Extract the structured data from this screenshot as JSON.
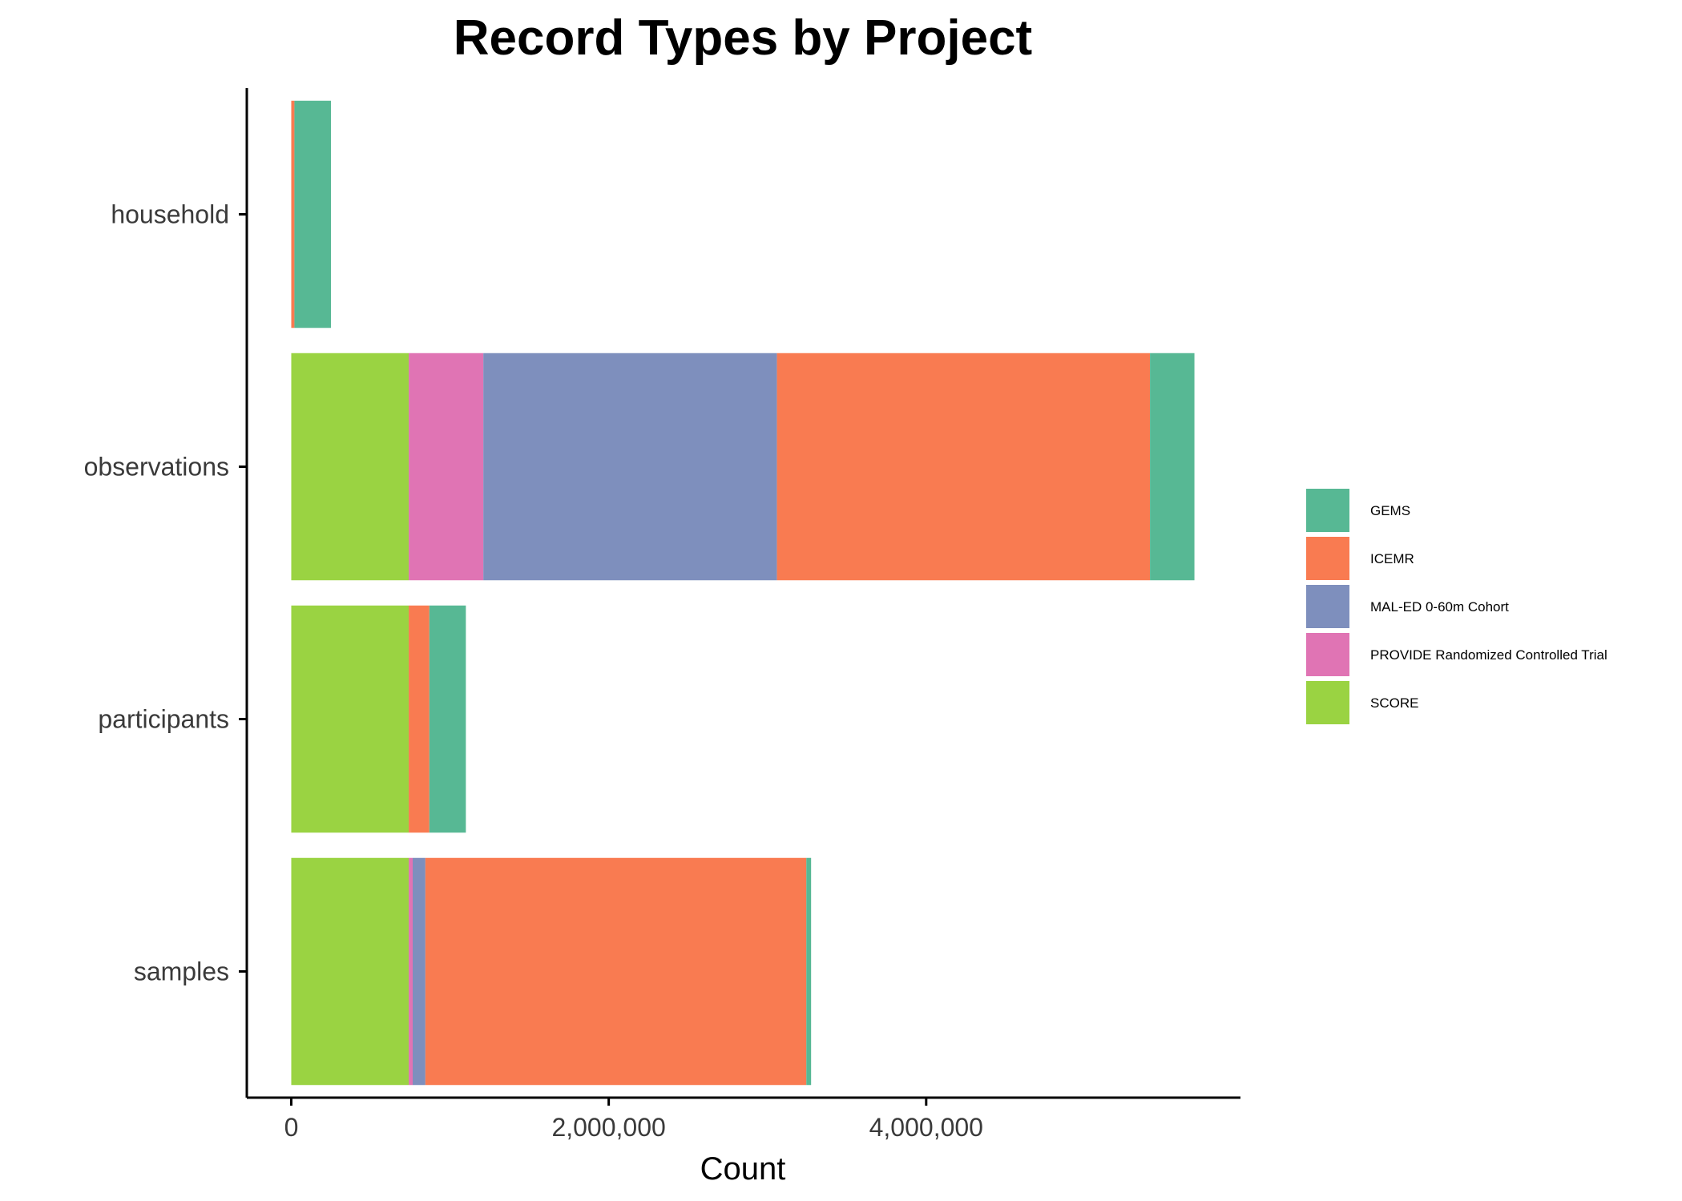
{
  "chart_data": {
    "type": "bar",
    "orientation": "horizontal",
    "stacked": true,
    "title": "Record Types by Project",
    "xlabel": "Count",
    "ylabel": "",
    "categories": [
      "samples",
      "participants",
      "observations",
      "household"
    ],
    "xticks": [
      {
        "value": 0,
        "label": "0"
      },
      {
        "value": 2000000,
        "label": "2,000,000"
      },
      {
        "value": 4000000,
        "label": "4,000,000"
      }
    ],
    "xlim": [
      -280000,
      5980000
    ],
    "grid": false,
    "legend_position": "right",
    "stack_order": [
      "SCORE",
      "PROVIDE Randomized Controlled Trial",
      "MAL-ED 0-60m Cohort",
      "ICEMR",
      "GEMS"
    ],
    "series": [
      {
        "name": "GEMS",
        "color": "#57b894",
        "values": [
          30000,
          230000,
          280000,
          230000
        ]
      },
      {
        "name": "ICEMR",
        "color": "#f97b51",
        "values": [
          2400000,
          130000,
          2350000,
          20000
        ]
      },
      {
        "name": "MAL-ED 0-60m Cohort",
        "color": "#7e8fbd",
        "values": [
          80000,
          0,
          1850000,
          0
        ]
      },
      {
        "name": "PROVIDE Randomized Controlled Trial",
        "color": "#e074b4",
        "values": [
          25000,
          0,
          470000,
          0
        ]
      },
      {
        "name": "SCORE",
        "color": "#9ad342",
        "values": [
          740000,
          740000,
          740000,
          0
        ]
      }
    ]
  }
}
